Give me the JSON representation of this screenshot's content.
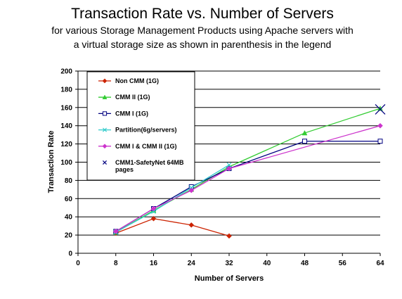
{
  "chart_data": {
    "type": "line",
    "title": "Transaction Rate vs. Number of Servers",
    "subtitle_lines": [
      "for various Storage Management Products using Apache  servers with",
      "a virtual storage size as shown in parenthesis in the legend"
    ],
    "xlabel": "Number of Servers",
    "ylabel": "Transaction Rate",
    "xlim": [
      0,
      64
    ],
    "ylim": [
      0,
      200
    ],
    "x_ticks": [
      "0",
      "8",
      "16",
      "24",
      "32",
      "40",
      "48",
      "56",
      "64"
    ],
    "y_ticks": [
      "0",
      "20",
      "40",
      "60",
      "80",
      "100",
      "120",
      "140",
      "160",
      "180",
      "200"
    ],
    "grid": "horizontal",
    "legend_position": "upper-left inside",
    "series": [
      {
        "name": "Non CMM (1G)",
        "color": "#cc2200",
        "marker": "diamond",
        "x": [
          8,
          16,
          24,
          32
        ],
        "y": [
          22,
          38,
          31,
          19
        ]
      },
      {
        "name": "CMM II (1G)",
        "color": "#33cc33",
        "marker": "triangle",
        "x": [
          8,
          16,
          24,
          32,
          48,
          64
        ],
        "y": [
          23,
          47,
          70,
          95,
          132,
          159
        ]
      },
      {
        "name": "CMM I (1G)",
        "color": "#000080",
        "marker": "square-open",
        "x": [
          8,
          16,
          24,
          32,
          48,
          64
        ],
        "y": [
          24,
          49,
          73,
          93,
          123,
          123
        ]
      },
      {
        "name": "Partition(6g/servers)",
        "color": "#33cccc",
        "marker": "x",
        "x": [
          8,
          16,
          24,
          32
        ],
        "y": [
          23,
          46,
          72,
          97
        ]
      },
      {
        "name": "CMM I & CMM II (1G)",
        "color": "#cc33cc",
        "marker": "diamond",
        "x": [
          8,
          16,
          24,
          32,
          64
        ],
        "y": [
          24,
          49,
          69,
          93,
          140
        ]
      },
      {
        "name": "CMM1-SafetyNet 64MB pages",
        "name_lines": [
          "CMM1-SafetyNet 64MB",
          "pages"
        ],
        "color": "#000080",
        "marker": "asterisk",
        "x": [
          64
        ],
        "y": [
          158
        ]
      }
    ]
  }
}
